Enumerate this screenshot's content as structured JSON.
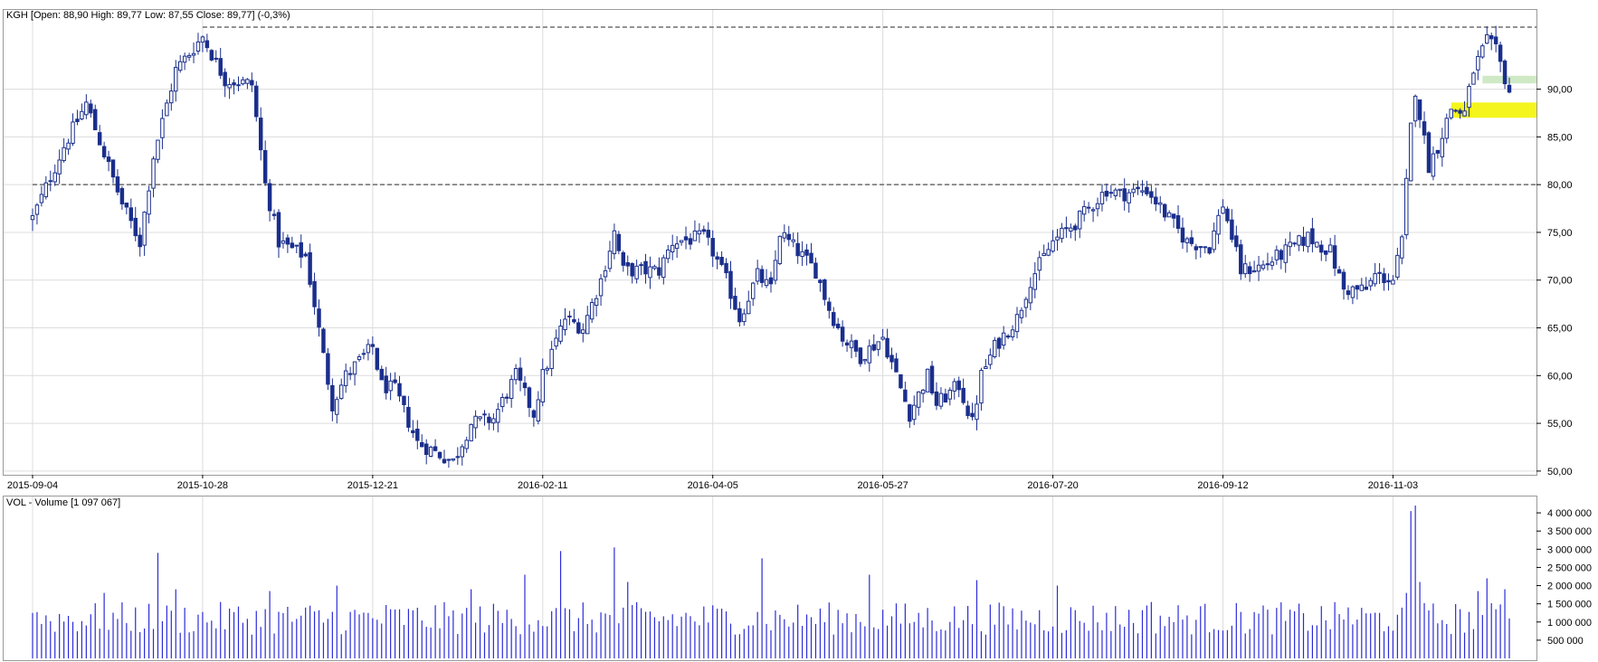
{
  "price_panel": {
    "info_label": "KGH [Open: 88,90  High: 89,77  Low: 87,55  Close: 89,77] (-0,3%)"
  },
  "volume_panel": {
    "info_label": "VOL - Volume [1 097 067]"
  },
  "colors": {
    "candle": "#1a2e8c",
    "volume_bar": "#2b2bd9",
    "grid": "#dcdcdc",
    "support_line": "#6e6e6e",
    "highlight_yellow": "#f5f51e",
    "highlight_green": "#cfe9c5"
  },
  "chart_data": [
    {
      "type": "candlestick",
      "symbol": "KGH",
      "ohlc_last": {
        "open": 88.9,
        "high": 89.77,
        "low": 87.55,
        "close": 89.77,
        "change": "-0,3%"
      },
      "x_tick_labels": [
        "2015-09-04",
        "2015-10-28",
        "2015-12-21",
        "2016-02-11",
        "2016-04-05",
        "2016-05-27",
        "2016-07-20",
        "2016-09-12",
        "2016-11-03"
      ],
      "y_tick_labels": [
        "50,00",
        "55,00",
        "60,00",
        "65,00",
        "70,00",
        "75,00",
        "80,00",
        "85,00",
        "90,00"
      ],
      "y_ticks": [
        50,
        55,
        60,
        65,
        70,
        75,
        80,
        85,
        90
      ],
      "ylim": [
        49.8,
        98.2
      ],
      "grid": true,
      "horizontal_lines": [
        {
          "name": "resistance",
          "value": 96.5,
          "start_date": "2015-10-28"
        },
        {
          "name": "support",
          "value": 80.0,
          "start_date": "2015-09-04"
        }
      ],
      "highlight_zones": [
        {
          "color": "yellow",
          "low": 87.0,
          "high": 88.6,
          "start_date": "2016-11-22"
        },
        {
          "color": "green",
          "low": 90.6,
          "high": 91.4,
          "start_date": "2016-12-01"
        }
      ],
      "path": [
        [
          "2015-09-04",
          76.5
        ],
        [
          "2015-09-15",
          84.0
        ],
        [
          "2015-09-22",
          88.5
        ],
        [
          "2015-10-02",
          78.0
        ],
        [
          "2015-10-08",
          74.0
        ],
        [
          "2015-10-13",
          83.0
        ],
        [
          "2015-10-20",
          92.0
        ],
        [
          "2015-10-28",
          95.5
        ],
        [
          "2015-11-04",
          91.0
        ],
        [
          "2015-11-12",
          90.5
        ],
        [
          "2015-11-17",
          80.0
        ],
        [
          "2015-11-20",
          74.0
        ],
        [
          "2015-11-30",
          72.5
        ],
        [
          "2015-12-02",
          67.5
        ],
        [
          "2015-12-04",
          62.0
        ],
        [
          "2015-12-08",
          57.0
        ],
        [
          "2015-12-11",
          60.0
        ],
        [
          "2015-12-21",
          63.0
        ],
        [
          "2015-12-23",
          59.0
        ],
        [
          "2015-12-28",
          58.5
        ],
        [
          "2016-01-04",
          53.0
        ],
        [
          "2016-01-08",
          52.0
        ],
        [
          "2016-01-14",
          51.0
        ],
        [
          "2016-01-20",
          55.0
        ],
        [
          "2016-01-27",
          55.5
        ],
        [
          "2016-02-03",
          60.0
        ],
        [
          "2016-02-09",
          56.0
        ],
        [
          "2016-02-11",
          60.0
        ],
        [
          "2016-02-18",
          66.0
        ],
        [
          "2016-02-24",
          65.0
        ],
        [
          "2016-03-01",
          70.0
        ],
        [
          "2016-03-04",
          75.0
        ],
        [
          "2016-03-08",
          71.0
        ],
        [
          "2016-03-18",
          71.0
        ],
        [
          "2016-03-23",
          74.0
        ],
        [
          "2016-04-01",
          74.5
        ],
        [
          "2016-04-05",
          73.0
        ],
        [
          "2016-04-08",
          70.0
        ],
        [
          "2016-04-13",
          66.0
        ],
        [
          "2016-04-19",
          70.5
        ],
        [
          "2016-04-22",
          69.0
        ],
        [
          "2016-04-26",
          75.0
        ],
        [
          "2016-05-04",
          72.0
        ],
        [
          "2016-05-06",
          71.0
        ],
        [
          "2016-05-11",
          67.0
        ],
        [
          "2016-05-16",
          64.0
        ],
        [
          "2016-05-20",
          62.0
        ],
        [
          "2016-05-27",
          64.0
        ],
        [
          "2016-06-01",
          60.0
        ],
        [
          "2016-06-06",
          56.0
        ],
        [
          "2016-06-10",
          60.0
        ],
        [
          "2016-06-14",
          57.0
        ],
        [
          "2016-06-21",
          59.0
        ],
        [
          "2016-06-24",
          55.0
        ],
        [
          "2016-06-28",
          60.0
        ],
        [
          "2016-07-01",
          63.0
        ],
        [
          "2016-07-08",
          66.0
        ],
        [
          "2016-07-13",
          70.0
        ],
        [
          "2016-07-20",
          74.0
        ],
        [
          "2016-07-27",
          76.0
        ],
        [
          "2016-08-02",
          78.0
        ],
        [
          "2016-08-05",
          79.5
        ],
        [
          "2016-08-10",
          79.0
        ],
        [
          "2016-08-18",
          79.5
        ],
        [
          "2016-08-24",
          77.0
        ],
        [
          "2016-08-31",
          74.0
        ],
        [
          "2016-09-07",
          73.5
        ],
        [
          "2016-09-12",
          78.0
        ],
        [
          "2016-09-16",
          71.0
        ],
        [
          "2016-09-23",
          71.5
        ],
        [
          "2016-09-30",
          73.0
        ],
        [
          "2016-10-07",
          74.5
        ],
        [
          "2016-10-14",
          73.0
        ],
        [
          "2016-10-19",
          69.0
        ],
        [
          "2016-10-26",
          69.0
        ],
        [
          "2016-10-28",
          70.5
        ],
        [
          "2016-11-03",
          70.0
        ],
        [
          "2016-11-07",
          74.0
        ],
        [
          "2016-11-09",
          86.0
        ],
        [
          "2016-11-10",
          90.0
        ],
        [
          "2016-11-15",
          82.0
        ],
        [
          "2016-11-17",
          84.0
        ],
        [
          "2016-11-22",
          88.0
        ],
        [
          "2016-11-25",
          87.5
        ],
        [
          "2016-11-29",
          92.0
        ],
        [
          "2016-12-02",
          95.0
        ],
        [
          "2016-12-06",
          94.0
        ],
        [
          "2016-12-09",
          89.77
        ]
      ]
    },
    {
      "type": "bar",
      "name": "VOL - Volume",
      "last_value": 1097067,
      "y_tick_labels": [
        "500 000",
        "1 000 000",
        "1 500 000",
        "2 000 000",
        "2 500 000",
        "3 000 000",
        "3 500 000",
        "4 000 000"
      ],
      "y_ticks": [
        500000,
        1000000,
        1500000,
        2000000,
        2500000,
        3000000,
        3500000,
        4000000
      ],
      "ylim": [
        0,
        4400000
      ],
      "grid": true,
      "bars": [
        [
          "2015-09-04",
          1250000
        ],
        [
          "2015-09-28",
          1800000
        ],
        [
          "2015-10-14",
          2900000
        ],
        [
          "2015-10-20",
          1900000
        ],
        [
          "2015-11-18",
          1850000
        ],
        [
          "2015-12-09",
          2000000
        ],
        [
          "2016-01-20",
          1900000
        ],
        [
          "2016-02-05",
          2300000
        ],
        [
          "2016-02-17",
          2950000
        ],
        [
          "2016-03-04",
          3050000
        ],
        [
          "2016-03-09",
          2100000
        ],
        [
          "2016-04-20",
          2750000
        ],
        [
          "2016-05-24",
          2300000
        ],
        [
          "2016-06-27",
          2150000
        ],
        [
          "2016-07-21",
          2000000
        ],
        [
          "2016-08-19",
          1550000
        ],
        [
          "2016-10-20",
          1400000
        ],
        [
          "2016-11-04",
          1200000
        ],
        [
          "2016-11-08",
          1800000
        ],
        [
          "2016-11-09",
          4050000
        ],
        [
          "2016-11-10",
          4200000
        ],
        [
          "2016-11-11",
          2100000
        ],
        [
          "2016-11-30",
          1850000
        ],
        [
          "2016-12-02",
          2200000
        ],
        [
          "2016-12-06",
          1350000
        ],
        [
          "2016-12-08",
          1900000
        ],
        [
          "2016-12-09",
          1097067
        ]
      ]
    }
  ]
}
